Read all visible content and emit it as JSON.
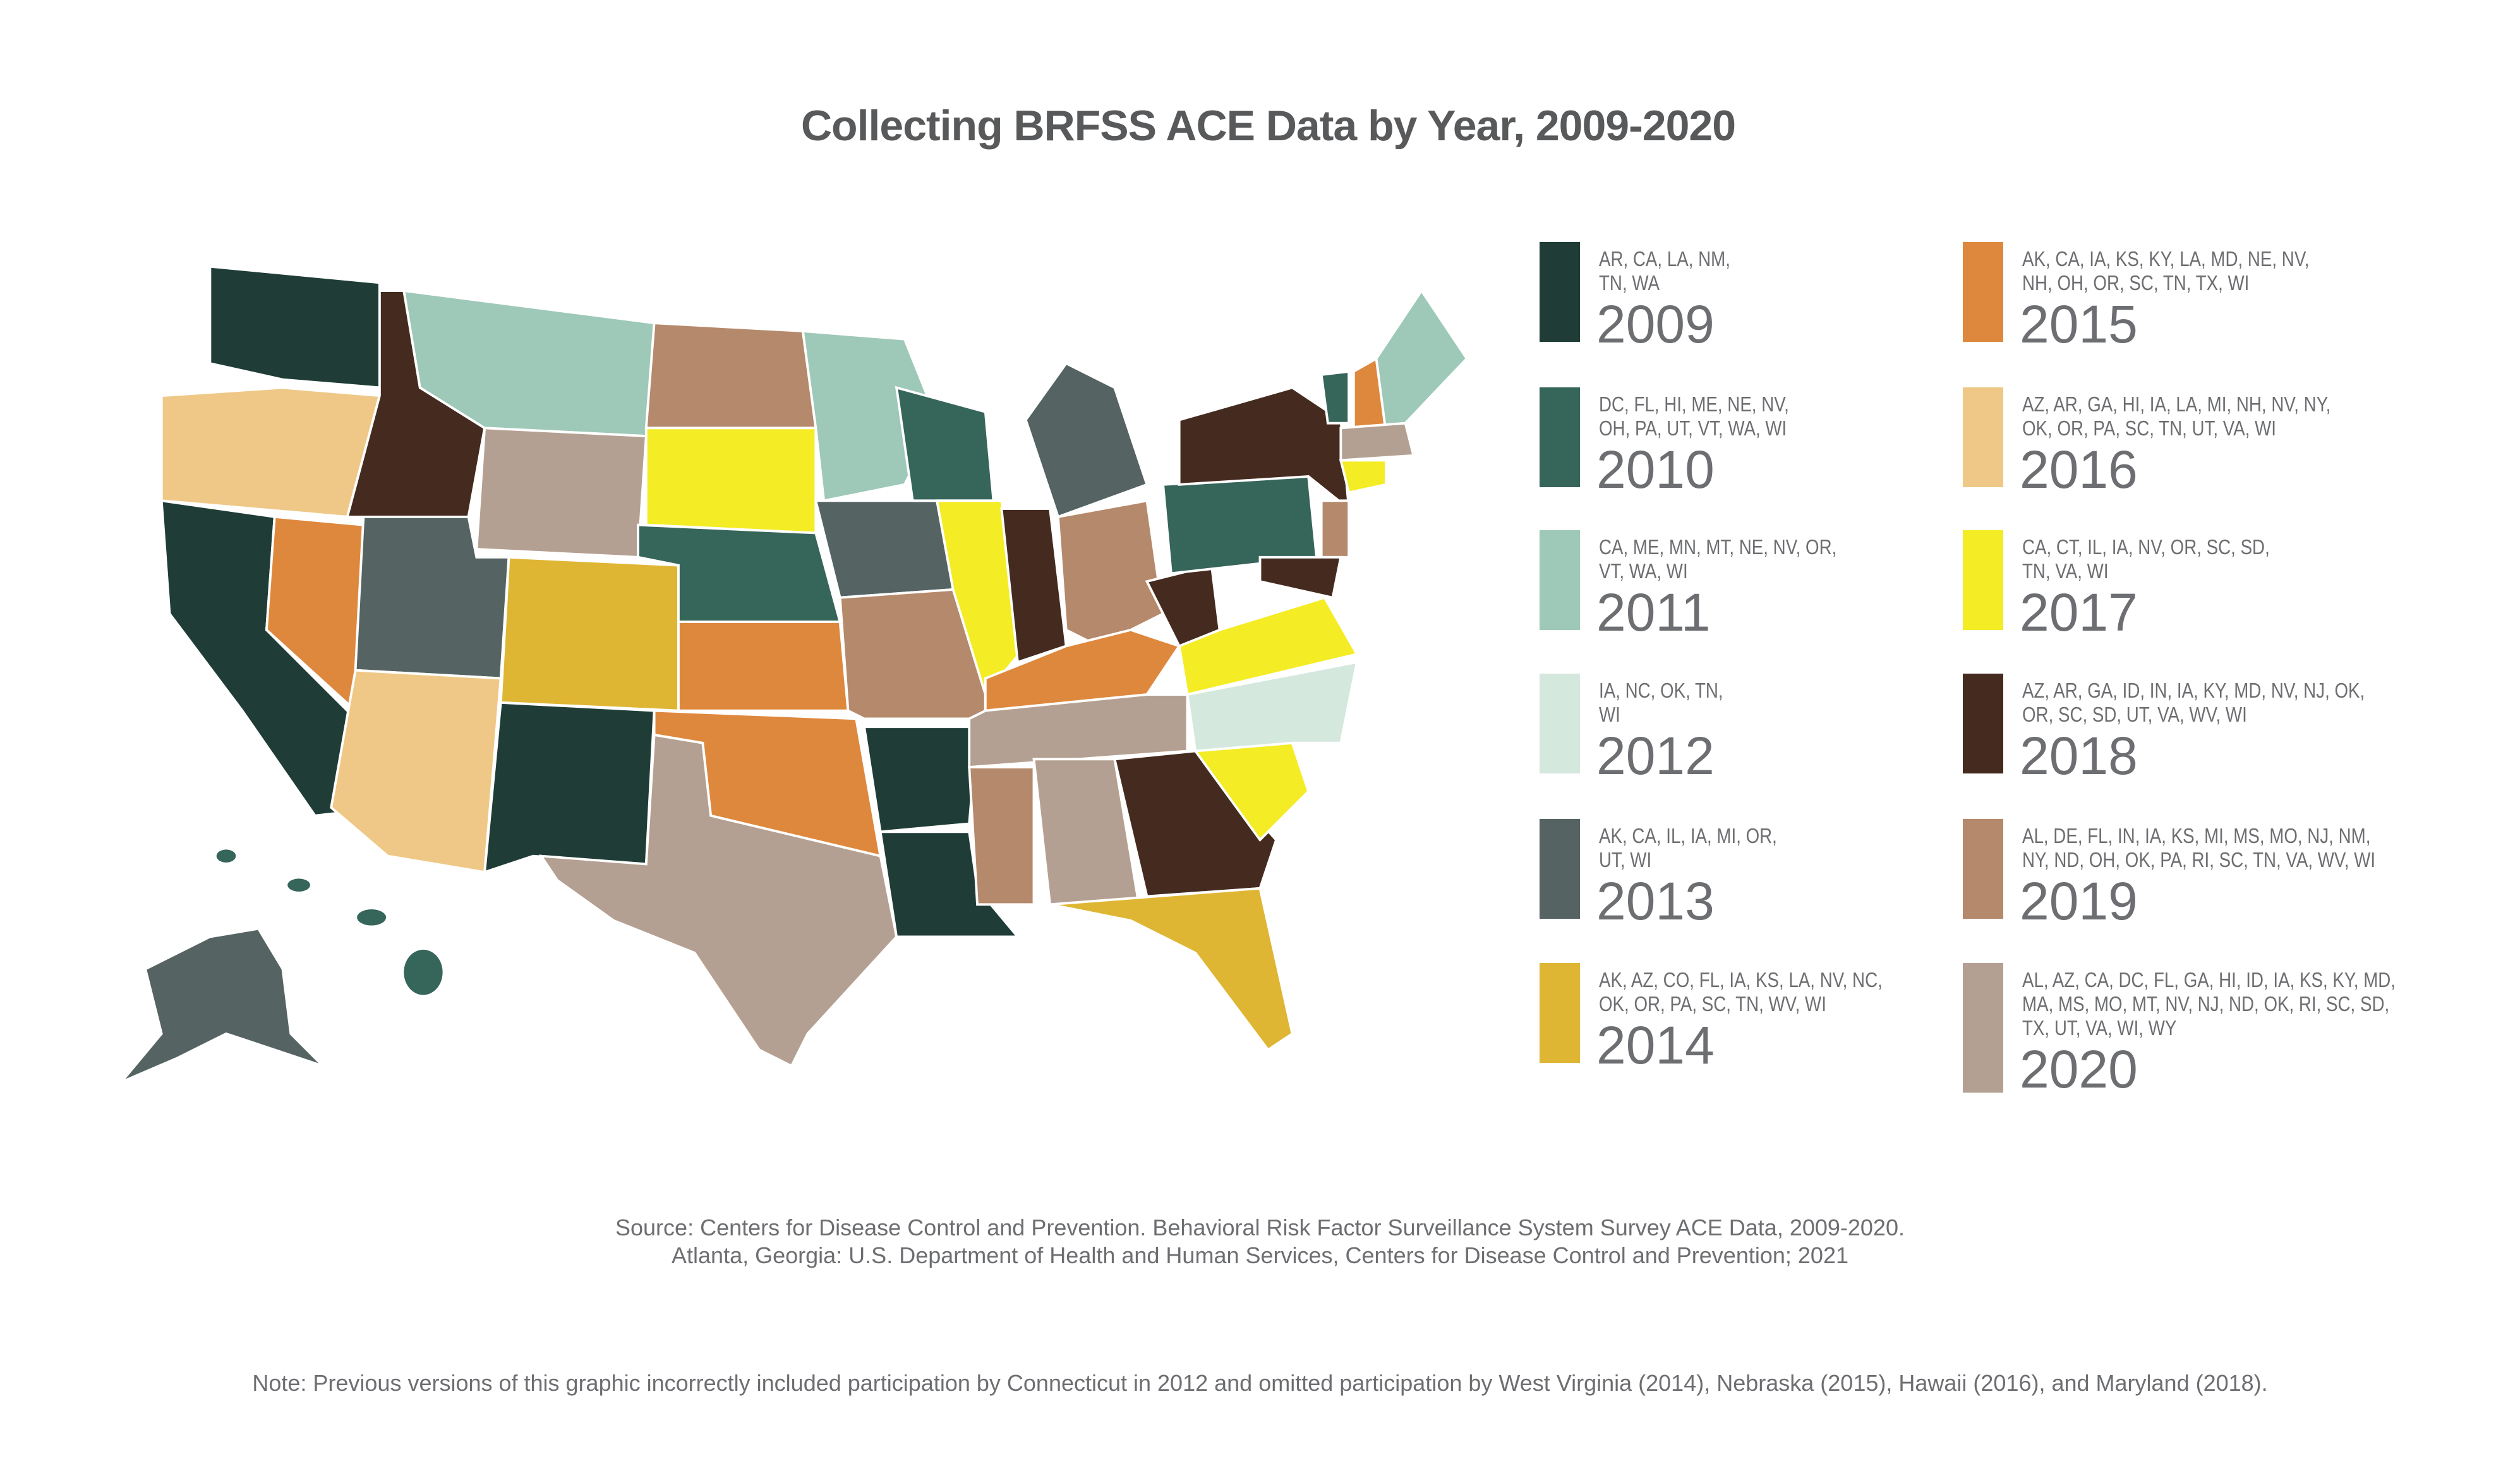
{
  "title": "Collecting BRFSS ACE Data by Year, 2009-2020",
  "legend": [
    {
      "year": "2009",
      "states": [
        "AR, CA, LA, NM,",
        "TN, WA"
      ],
      "color": "#1f3d36"
    },
    {
      "year": "2010",
      "states": [
        "DC, FL, HI, ME, NE, NV,",
        "OH, PA, UT, VT, WA, WI"
      ],
      "color": "#36655a"
    },
    {
      "year": "2011",
      "states": [
        "CA, ME, MN, MT, NE, NV, OR,",
        "VT, WA, WI"
      ],
      "color": "#9ec8b8"
    },
    {
      "year": "2012",
      "states": [
        "IA, NC, OK, TN,",
        "WI"
      ],
      "color": "#d4e8de"
    },
    {
      "year": "2013",
      "states": [
        "AK, CA, IL, IA, MI, OR,",
        "UT, WI"
      ],
      "color": "#556463"
    },
    {
      "year": "2014",
      "states": [
        "AK, AZ, CO, FL, IA, KS, LA, NV, NC,",
        "OK, OR, PA, SC, TN, WV, WI"
      ],
      "color": "#dfb633"
    },
    {
      "year": "2015",
      "states": [
        "AK, CA, IA, KS, KY, LA, MD, NE, NV,",
        "NH, OH, OR, SC, TN, TX, WI"
      ],
      "color": "#de883e"
    },
    {
      "year": "2016",
      "states": [
        "AZ, AR, GA, HI, IA, LA, MI, NH, NV, NY,",
        "OK, OR, PA, SC, TN, UT, VA, WI"
      ],
      "color": "#efc887"
    },
    {
      "year": "2017",
      "states": [
        "CA, CT, IL, IA, NV, OR, SC, SD,",
        "TN, VA, WI"
      ],
      "color": "#f4ec25"
    },
    {
      "year": "2018",
      "states": [
        "AZ, AR, GA, ID, IN, IA, KY, MD, NV, NJ, OK,",
        "OR, SC, SD, UT, VA, WV, WI"
      ],
      "color": "#452b1f"
    },
    {
      "year": "2019",
      "states": [
        "AL, DE, FL, IN, IA, KS, MI, MS, MO, NJ, NM,",
        "NY, ND, OH, OK, PA, RI, SC, TN, VA, WV, WI"
      ],
      "color": "#b5896b"
    },
    {
      "year": "2020",
      "states": [
        "AL, AZ, CA, DC, FL, GA, HI, ID, IA, KS, KY, MD,",
        "MA, MS, MO, MT, NV, NJ, ND, OK, RI, SC, SD,",
        "TX, UT, VA, WI, WY"
      ],
      "color": "#b4a092"
    }
  ],
  "source": [
    "Source: Centers for Disease Control and Prevention. Behavioral Risk Factor Surveillance System Survey ACE Data, 2009-2020.",
    "Atlanta, Georgia: U.S. Department of Health and Human Services, Centers for Disease Control and Prevention; 2021"
  ],
  "note": "Note: Previous versions of this graphic incorrectly included participation by Connecticut in 2012 and omitted participation by West Virginia (2014), Nebraska (2015), Hawaii (2016), and Maryland (2018)."
}
